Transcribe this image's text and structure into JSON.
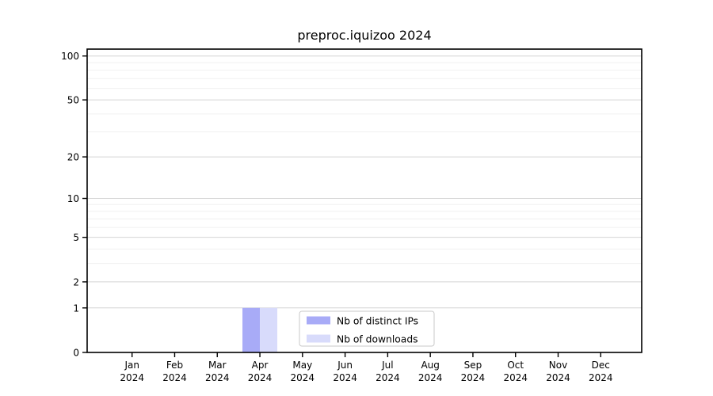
{
  "chart_data": {
    "type": "bar",
    "title": "preproc.iquizoo 2024",
    "categories": [
      "Jan",
      "Feb",
      "Mar",
      "Apr",
      "May",
      "Jun",
      "Jul",
      "Aug",
      "Sep",
      "Oct",
      "Nov",
      "Dec"
    ],
    "year_label": "2024",
    "series": [
      {
        "name": "Nb of distinct IPs",
        "color": "#a8abf7",
        "values": [
          0,
          0,
          0,
          1,
          0,
          0,
          0,
          0,
          0,
          0,
          0,
          0
        ]
      },
      {
        "name": "Nb of downloads",
        "color": "#d8dbfb",
        "values": [
          0,
          0,
          0,
          1,
          0,
          0,
          0,
          0,
          0,
          0,
          0,
          0
        ]
      }
    ],
    "yscale": "log1p",
    "yticks": [
      0,
      1,
      2,
      5,
      10,
      20,
      50,
      100
    ],
    "yminor": [
      3,
      4,
      6,
      7,
      8,
      9,
      30,
      40,
      60,
      70,
      80,
      90
    ],
    "ylim": [
      0,
      111
    ],
    "xlabel": "",
    "ylabel": "",
    "grid": true,
    "legend": {
      "position": "bottom-center-inside",
      "border_color": "#c9c9c9",
      "background": "#ffffff"
    },
    "colors": {
      "grid_major": "#d4d4d4",
      "grid_minor": "#f0f0f0",
      "axis": "#000000",
      "background": "#ffffff"
    }
  }
}
